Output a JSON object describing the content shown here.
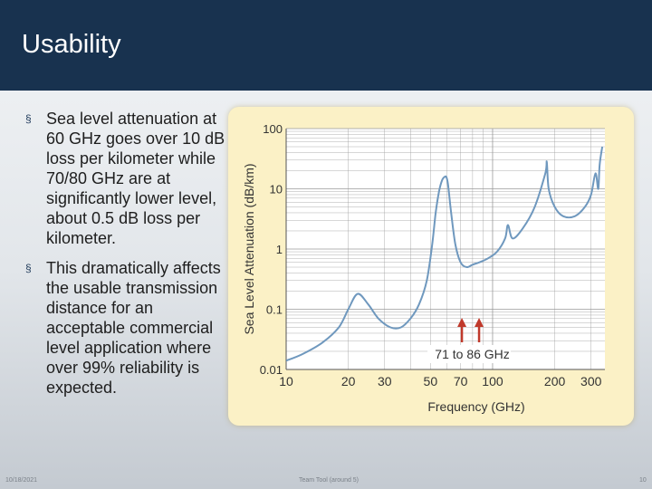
{
  "slide": {
    "title": "Usability",
    "bullets": [
      "Sea level attenuation at 60 GHz goes over 10 dB loss per kilometer while 70/80 GHz are at significantly lower level, about 0.5 dB loss per kilometer.",
      "This dramatically affects the usable transmission distance for an acceptable commercial level application where over 99% reliability is expected."
    ],
    "bullet_marker": "§",
    "footer": {
      "date": "10/18/2021",
      "center": "Team Tool (around 5)",
      "page": "10"
    }
  },
  "colors": {
    "header": "#18324f",
    "panel": "#fbf1c6",
    "curve": "#6f98be",
    "arrow": "#c0392b",
    "grid": "#9a9a9a"
  },
  "chart_data": {
    "type": "line",
    "title": "",
    "xlabel": "Frequency (GHz)",
    "ylabel": "Sea Level Attenuation (dB/km)",
    "xscale": "log",
    "yscale": "log",
    "xlim": [
      10,
      350
    ],
    "ylim": [
      0.01,
      100
    ],
    "x_ticks": [
      10,
      20,
      30,
      50,
      70,
      100,
      200,
      300
    ],
    "x_tick_labels": [
      "10",
      "20",
      "30",
      "50",
      "70",
      "100",
      "200",
      "300"
    ],
    "y_ticks": [
      0.01,
      0.1,
      1,
      10,
      100
    ],
    "y_tick_labels": [
      "0.01",
      "0.1",
      "1",
      "10",
      "100"
    ],
    "grid": true,
    "series": [
      {
        "x": [
          10,
          12,
          15,
          18,
          20,
          22.2,
          25,
          28,
          32,
          36,
          40,
          44,
          48,
          51,
          53,
          55,
          57,
          59,
          60,
          61,
          63,
          66,
          70,
          75,
          80,
          86,
          95,
          105,
          115,
          118.7,
          125,
          140,
          160,
          180,
          183,
          187,
          200,
          220,
          250,
          280,
          300,
          315,
          325,
          330,
          340
        ],
        "y": [
          0.014,
          0.018,
          0.028,
          0.05,
          0.1,
          0.18,
          0.12,
          0.07,
          0.05,
          0.05,
          0.07,
          0.12,
          0.3,
          1.2,
          4,
          9,
          14,
          16,
          15,
          11,
          4,
          1.2,
          0.6,
          0.5,
          0.55,
          0.6,
          0.7,
          0.9,
          1.5,
          2.5,
          1.5,
          2.2,
          5,
          18,
          28,
          10,
          5,
          3.5,
          3.5,
          5,
          8,
          18,
          10,
          25,
          50
        ]
      }
    ],
    "annotations": [
      {
        "text": "71 to 86 GHz",
        "arrows_at_x": [
          71,
          86
        ]
      }
    ]
  }
}
